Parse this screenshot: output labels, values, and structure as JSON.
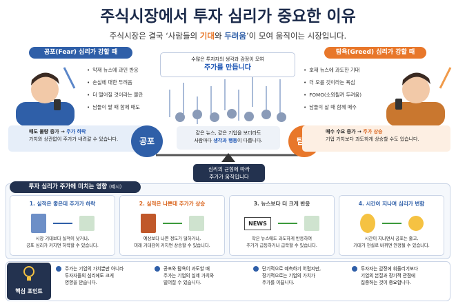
{
  "header": {
    "title": "주식시장에서 투자 심리가 중요한 이유",
    "subtitle": [
      "주식시장은 결국 ‘사람들의 ",
      "기대",
      "와 ",
      "두려움",
      "’이 모여 움직이는 시장입니다."
    ]
  },
  "fear": {
    "title": "공포(Fear) 심리가 강할 때",
    "bullets": [
      "악재 뉴스에 과민 반응",
      "손실에 대한 두려움",
      "더 떨어질 것이라는 불안",
      "남들이 팔 때 함께 매도"
    ],
    "result": [
      "매도 물량 증가 → ",
      "주가 하락"
    ],
    "note": "가치와 상관없이 주가가 내려갈 수 있습니다.",
    "label": "공포"
  },
  "center": {
    "top": [
      "수많은 투자자의 생각과 감정이 모여",
      "주가를 만듭니다"
    ],
    "middle": [
      "같은 뉴스, 같은 기업을 보더라도",
      "사람마다 ",
      "생각과 행동",
      "이 다릅니다."
    ],
    "bottom": [
      "심리의 균형에 따라",
      "주가가 움직입니다"
    ]
  },
  "greed": {
    "title": "탐욕(Greed) 심리가 강할 때",
    "bullets": [
      "호재 뉴스에 과도한 기대",
      "더 오를 것이라는 욕심",
      "FOMO(소외될까 두려움)",
      "남들이 살 때 함께 매수"
    ],
    "result": [
      "매수 수요 증가 → ",
      "주가 상승"
    ],
    "note": "기업 가치보다 과도하게 상승할 수도 있습니다.",
    "label": "탐욕"
  },
  "examples": {
    "title": "투자 심리가 주가에 미치는 영향",
    "tag": "(예시)",
    "cards": [
      {
        "title": "1. 실적은 좋은데 주가가 하락",
        "lines": [
          "시장 기대보다 실적이 낮거나,",
          "공포 심리가 커지면 하락할 수 있습니다."
        ]
      },
      {
        "title": "2. 실적은 나쁜데 주가가 상승",
        "lines": [
          "예상보다 나쁜 정도가 덜하거나,",
          "미래 기대감이 커지면 상승할 수 있습니다."
        ]
      },
      {
        "title": "3. 뉴스보다 더 크게 반응",
        "lines": [
          "작은 뉴스에도 과도하게 반응하여",
          "주가가 급등하거나 급락할 수 있습니다."
        ],
        "icon": "NEWS"
      },
      {
        "title": "4. 시간이 지나며 심리가 변함",
        "lines": [
          "시간이 지나면서 공포는 줄고,",
          "기대가 현실로 바뀌면 안정될 수 있습니다."
        ]
      }
    ]
  },
  "key_points": {
    "title": "핵심 포인트",
    "items": [
      [
        "주가는 기업의 가치뿐만 아니라",
        "투자자들의 심리에도 크게",
        "영향을 받습니다."
      ],
      [
        "공포와 탐욕이 과도할 때",
        "주가는 기업의 실제 가치와",
        "멀어질 수 있습니다."
      ],
      [
        "단기적으로 예측하기 어렵지만,",
        "장기적으로는 기업의 가치가",
        "주가를 이끕니다."
      ],
      [
        "투자자는 감정에 휘둘리기보다",
        "기업의 본질과 장기적 관점에",
        "집중하는 것이 중요합니다."
      ]
    ]
  }
}
